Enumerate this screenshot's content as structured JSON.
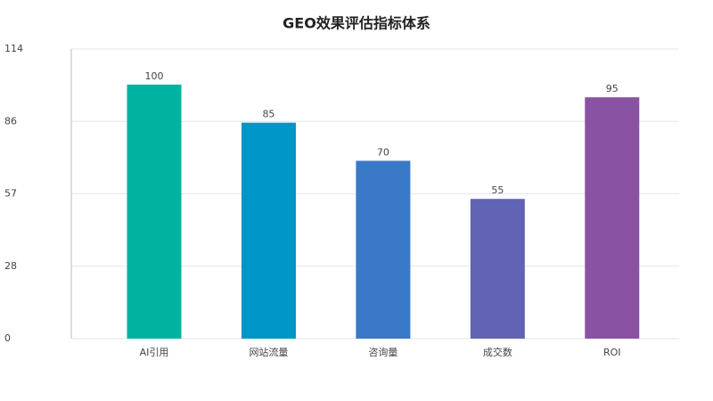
{
  "chart_data": {
    "type": "bar",
    "title": "GEO效果评估指标体系",
    "categories": [
      "AI引用",
      "网站流量",
      "咨询量",
      "成交数",
      "ROI"
    ],
    "values": [
      100,
      85,
      70,
      55,
      95
    ],
    "colors": [
      "#00b3a1",
      "#0096c8",
      "#3a78c8",
      "#6164b4",
      "#8a52a2"
    ],
    "ylim": [
      0,
      114
    ],
    "yticks": [
      0,
      {
        "value": 28.5,
        "label": "28"
      },
      57,
      {
        "value": 85.5,
        "label": "86"
      },
      114
    ],
    "grid": true
  }
}
